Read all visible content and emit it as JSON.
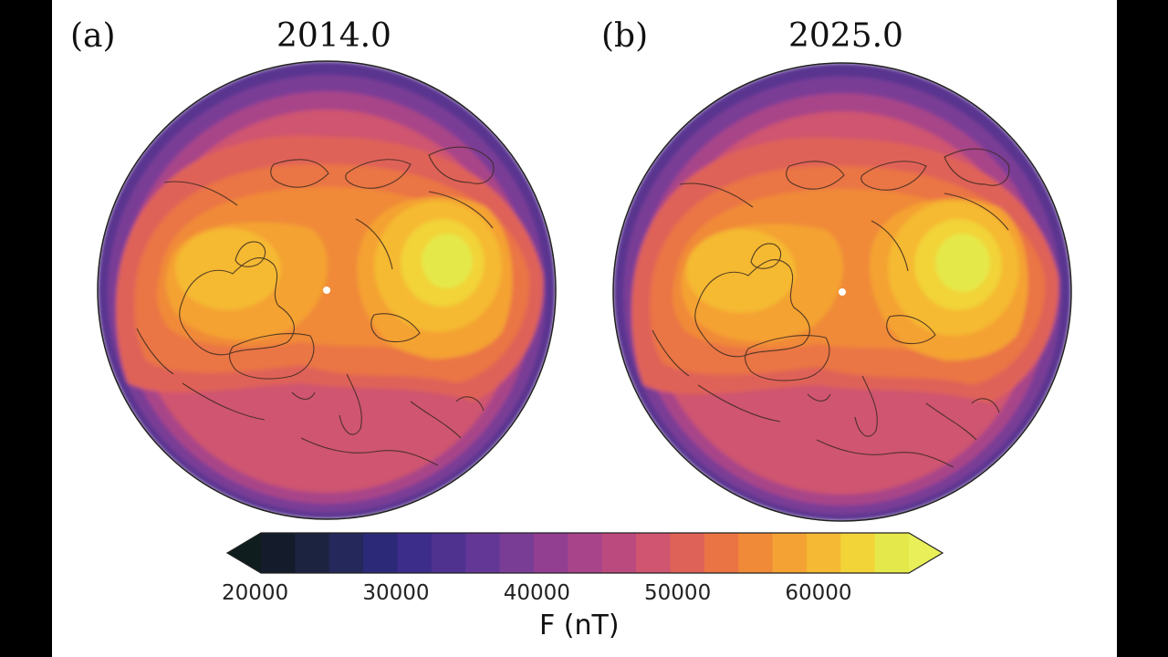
{
  "panels": [
    {
      "label": "(a)",
      "title": "2014.0"
    },
    {
      "label": "(b)",
      "title": "2025.0"
    }
  ],
  "colorbar": {
    "label": "F (nT)",
    "min": 20000,
    "max": 66000,
    "ticks": [
      "20000",
      "30000",
      "40000",
      "50000",
      "60000"
    ],
    "colors": [
      "#141b2b",
      "#1c2340",
      "#24285a",
      "#2c2a78",
      "#3d2d8a",
      "#4f3190",
      "#633795",
      "#7a3d96",
      "#923f92",
      "#a84489",
      "#bb4b7f",
      "#cf5570",
      "#df6258",
      "#ea7444",
      "#f08a38",
      "#f4a233",
      "#f5b933",
      "#f2d338",
      "#e5e84a"
    ],
    "extend": "both"
  },
  "map": {
    "projection": "orthographic north-polar",
    "variable": "geomagnetic field intensity F",
    "marker_color": "#ffffff"
  }
}
